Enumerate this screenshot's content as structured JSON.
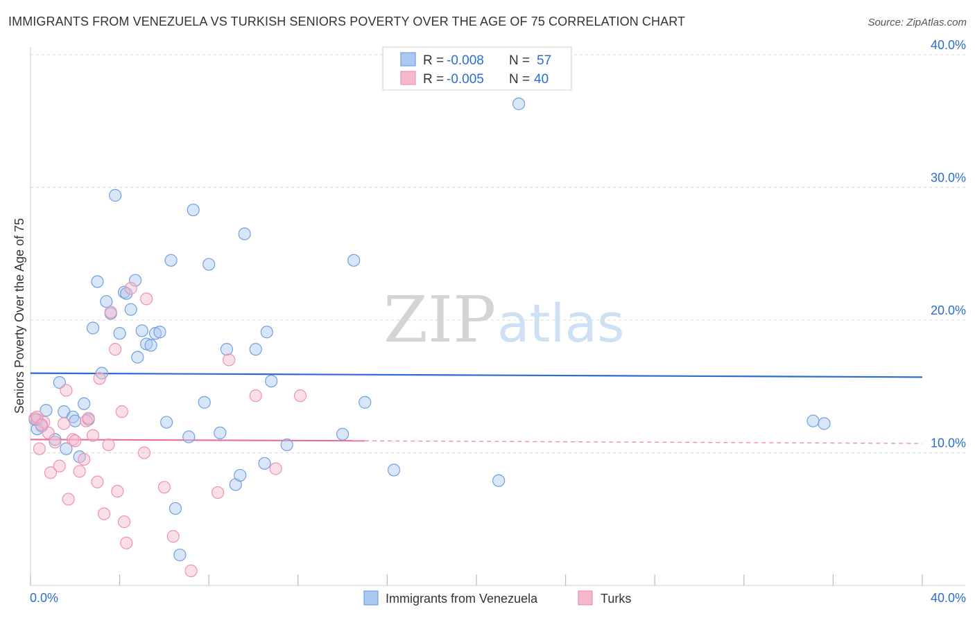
{
  "title": "IMMIGRANTS FROM VENEZUELA VS TURKISH SENIORS POVERTY OVER THE AGE OF 75 CORRELATION CHART",
  "source": "Source: ZipAtlas.com",
  "watermark": {
    "part1": "ZIP",
    "part2": "atlas"
  },
  "colors": {
    "blue": "#2a6dd0",
    "blue_fill": "#aac8f0",
    "blue_stroke": "#6f9fe0",
    "pink": "#e8709a",
    "pink_fill": "#f6b8cc",
    "pink_stroke": "#ec92b2",
    "grid": "#d8d8d8",
    "axis_text": "#2a6dd0"
  },
  "legend": {
    "rows": [
      {
        "r_label": "R = ",
        "r_value": "-0.008",
        "n_label": "N = ",
        "n_value": "57"
      },
      {
        "r_label": "R = ",
        "r_value": "-0.005",
        "n_label": "N = ",
        "n_value": "40"
      }
    ]
  },
  "chart_data": {
    "type": "scatter",
    "title": "IMMIGRANTS FROM VENEZUELA VS TURKISH SENIORS POVERTY OVER THE AGE OF 75 CORRELATION CHART",
    "xlabel": "",
    "ylabel": "Seniors Poverty Over the Age of 75",
    "xlim": [
      0,
      40
    ],
    "ylim": [
      0,
      40
    ],
    "x_tick_labels": [
      "0.0%",
      "40.0%"
    ],
    "y_ticks": [
      {
        "value": 10,
        "label": "10.0%"
      },
      {
        "value": 20,
        "label": "20.0%"
      },
      {
        "value": 30,
        "label": "30.0%"
      },
      {
        "value": 40,
        "label": "40.0%"
      }
    ],
    "grid": true,
    "legend_position": "top-center",
    "series": [
      {
        "name": "Immigrants from Venezuela",
        "color": "blue",
        "R": -0.008,
        "N": 57,
        "trend": {
          "x": [
            0.0,
            40.0
          ],
          "y": [
            16.0,
            15.7
          ]
        },
        "points": [
          [
            0.3,
            12.5
          ],
          [
            0.5,
            12.0
          ],
          [
            0.3,
            11.8
          ],
          [
            0.7,
            13.2
          ],
          [
            1.1,
            11.0
          ],
          [
            1.3,
            15.3
          ],
          [
            1.5,
            13.1
          ],
          [
            1.6,
            10.3
          ],
          [
            1.9,
            12.7
          ],
          [
            2.0,
            12.4
          ],
          [
            2.2,
            9.7
          ],
          [
            2.4,
            13.7
          ],
          [
            2.6,
            12.5
          ],
          [
            2.8,
            19.4
          ],
          [
            3.0,
            22.9
          ],
          [
            3.2,
            16.0
          ],
          [
            3.4,
            21.4
          ],
          [
            3.6,
            20.5
          ],
          [
            3.8,
            29.4
          ],
          [
            4.0,
            19.0
          ],
          [
            4.2,
            22.1
          ],
          [
            4.3,
            22.0
          ],
          [
            4.5,
            20.8
          ],
          [
            4.7,
            23.0
          ],
          [
            4.8,
            17.2
          ],
          [
            5.0,
            19.2
          ],
          [
            5.2,
            18.2
          ],
          [
            5.4,
            18.1
          ],
          [
            5.6,
            19.0
          ],
          [
            5.8,
            19.1
          ],
          [
            6.1,
            12.3
          ],
          [
            6.3,
            24.5
          ],
          [
            6.5,
            5.8
          ],
          [
            6.7,
            2.3
          ],
          [
            7.1,
            11.2
          ],
          [
            7.3,
            28.3
          ],
          [
            7.8,
            13.8
          ],
          [
            8.0,
            24.2
          ],
          [
            8.5,
            11.5
          ],
          [
            8.8,
            17.8
          ],
          [
            9.2,
            7.6
          ],
          [
            9.4,
            8.3
          ],
          [
            9.6,
            26.5
          ],
          [
            10.1,
            17.8
          ],
          [
            10.5,
            9.2
          ],
          [
            10.6,
            19.1
          ],
          [
            10.8,
            15.4
          ],
          [
            11.5,
            10.6
          ],
          [
            14.0,
            11.4
          ],
          [
            14.5,
            24.5
          ],
          [
            15.0,
            13.8
          ],
          [
            16.3,
            8.7
          ],
          [
            21.0,
            7.9
          ],
          [
            21.9,
            36.3
          ],
          [
            35.1,
            12.4
          ],
          [
            35.6,
            12.2
          ],
          [
            0.2,
            12.5
          ]
        ]
      },
      {
        "name": "Turks",
        "color": "pink",
        "R": -0.005,
        "N": 40,
        "trend": {
          "x": [
            0.0,
            15.0
          ],
          "y": [
            11.0,
            10.9
          ]
        },
        "trend_extension": {
          "x": [
            15.0,
            40.0
          ],
          "y": [
            10.9,
            10.7
          ]
        },
        "points": [
          [
            0.2,
            12.6
          ],
          [
            0.4,
            10.3
          ],
          [
            0.6,
            12.3
          ],
          [
            0.8,
            11.5
          ],
          [
            0.9,
            8.5
          ],
          [
            1.1,
            10.8
          ],
          [
            1.3,
            9.0
          ],
          [
            1.5,
            12.2
          ],
          [
            1.6,
            14.7
          ],
          [
            1.7,
            6.5
          ],
          [
            1.9,
            11.0
          ],
          [
            2.0,
            10.9
          ],
          [
            2.2,
            8.6
          ],
          [
            2.4,
            9.5
          ],
          [
            2.5,
            12.4
          ],
          [
            2.6,
            12.6
          ],
          [
            2.8,
            11.3
          ],
          [
            3.0,
            7.8
          ],
          [
            3.1,
            15.6
          ],
          [
            3.3,
            5.4
          ],
          [
            3.5,
            10.6
          ],
          [
            3.6,
            20.6
          ],
          [
            3.8,
            17.8
          ],
          [
            3.9,
            7.1
          ],
          [
            4.1,
            13.1
          ],
          [
            4.2,
            4.8
          ],
          [
            4.3,
            3.2
          ],
          [
            4.5,
            22.4
          ],
          [
            5.1,
            10.0
          ],
          [
            5.2,
            21.6
          ],
          [
            6.0,
            7.4
          ],
          [
            6.4,
            3.7
          ],
          [
            7.2,
            1.1
          ],
          [
            8.4,
            7.0
          ],
          [
            8.9,
            17.0
          ],
          [
            10.1,
            14.3
          ],
          [
            11.0,
            8.8
          ],
          [
            12.1,
            14.3
          ],
          [
            0.3,
            12.7
          ],
          [
            0.5,
            12.1
          ]
        ]
      }
    ]
  }
}
